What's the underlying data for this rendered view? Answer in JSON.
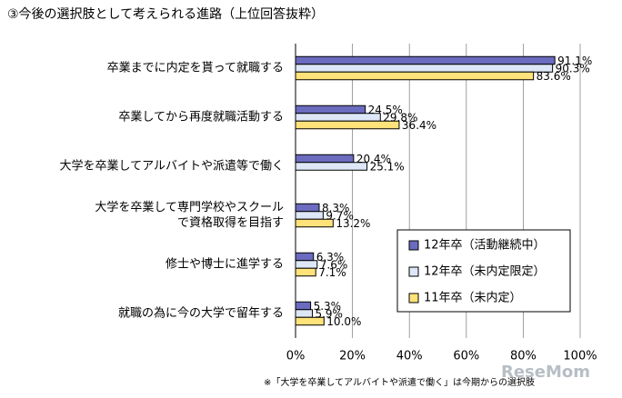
{
  "chart_data": {
    "type": "hbar",
    "title": "③今後の選択肢として考えられる進路（上位回答抜粋）",
    "categories": [
      "卒業までに内定を貰って就職する",
      "卒業してから再度就職活動する",
      "大学を卒業してアルバイトや派遣等で働く",
      "大学を卒業して専門学校やスクール\nで資格取得を目指す",
      "修士や博士に進学する",
      "就職の為に今の大学で留年する"
    ],
    "series": [
      {
        "name": "12年卒（活動継続中）",
        "color": "#6b6bbf",
        "values": [
          91.1,
          24.5,
          20.4,
          8.3,
          6.3,
          5.3
        ],
        "value_labels": [
          "91.1%",
          "24.5%",
          "20.4%",
          "8.3%",
          "6.3%",
          "5.3%"
        ]
      },
      {
        "name": "12年卒（未内定限定）",
        "color": "#dde7f7",
        "values": [
          90.3,
          29.8,
          25.1,
          9.7,
          7.6,
          5.9
        ],
        "value_labels": [
          "90.3%",
          "29.8%",
          "25.1%",
          "9.7%",
          "7.6%",
          "5.9%"
        ]
      },
      {
        "name": "11年卒（未内定）",
        "color": "#ffe27a",
        "values": [
          83.6,
          36.4,
          null,
          13.2,
          7.1,
          10.0
        ],
        "value_labels": [
          "83.6%",
          "36.4%",
          null,
          "13.2%",
          "7.1%",
          "10.0%"
        ]
      }
    ],
    "xlim": [
      0,
      100
    ],
    "xticks": [
      {
        "value": 0,
        "label": "0%"
      },
      {
        "value": 20,
        "label": "20%"
      },
      {
        "value": 40,
        "label": "40%"
      },
      {
        "value": 60,
        "label": "60%"
      },
      {
        "value": 80,
        "label": "80%"
      },
      {
        "value": 100,
        "label": "100%"
      }
    ],
    "grid": true,
    "footnote": "※「大学を卒業してアルバイトや派遣で働く」は今期からの選択肢",
    "watermark": "ReseMom"
  }
}
